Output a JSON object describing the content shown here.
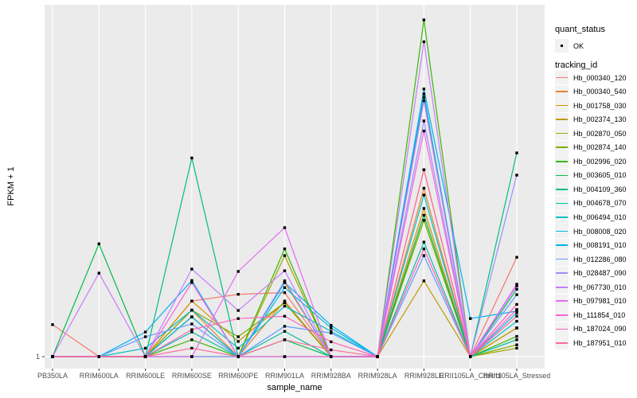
{
  "axes": {
    "x_title": "sample_name",
    "y_title": "FPKM + 1",
    "y_tick_label": "1"
  },
  "legend": {
    "quant_title": "quant_status",
    "quant_items": [
      {
        "label": "OK",
        "marker": "black-point"
      }
    ],
    "tracking_title": "tracking_id",
    "position": "right"
  },
  "colors": {
    "panel_bg": "#EBEBEB",
    "grid": "#FFFFFF",
    "tick_mark": "#333333",
    "tick_text": "#4D4D4D",
    "point": "#000000",
    "legend_key_bg": "#F2F2F2"
  },
  "chart_data": {
    "type": "line",
    "title": "",
    "xlabel": "sample_name",
    "ylabel": "FPKM + 1",
    "y_scale_note": "log-like axis; only break shown is '1' at the baseline; series values below are relative heights 0-100 estimated from pixels (100 = tallest peak)",
    "ylim": [
      0,
      100
    ],
    "grid": "vertical major gridlines per category + baseline line at y=1",
    "legend_position": "right",
    "point_marker": "small black square (quant_status OK)",
    "categories": [
      "PB350LA",
      "RRIM600LA",
      "RRIM600LE",
      "RRIM600SE",
      "RRIM600PE",
      "RRIM901LA",
      "RRIM928BA",
      "RRIM928LA",
      "RRIM928LE",
      "RRII105LA_Control",
      "RRII105LA_Stressed"
    ],
    "series": [
      {
        "name": "Hb_000340_120",
        "color": "#F8766D",
        "values": [
          9.5,
          0,
          0,
          16.5,
          18.5,
          19,
          0,
          0,
          55.5,
          0,
          29.5
        ]
      },
      {
        "name": "Hb_000340_540",
        "color": "#EA8331",
        "values": [
          0,
          0,
          0,
          13.8,
          0,
          16.5,
          0,
          0,
          50,
          0,
          8.5
        ]
      },
      {
        "name": "Hb_001758_030",
        "color": "#D89000",
        "values": [
          0,
          0,
          0,
          16.5,
          4.5,
          16,
          0,
          0,
          44,
          0,
          8.5
        ]
      },
      {
        "name": "Hb_002374_130",
        "color": "#C09B00",
        "values": [
          0,
          0,
          0,
          11.8,
          0,
          22,
          0,
          0,
          22.5,
          0,
          8.5
        ]
      },
      {
        "name": "Hb_002870_050",
        "color": "#A3A500",
        "values": [
          0,
          0,
          0,
          11.8,
          0,
          30,
          0,
          0,
          40.5,
          0,
          2.5
        ]
      },
      {
        "name": "Hb_002874_140",
        "color": "#7CAE00",
        "values": [
          0,
          0,
          0,
          13.8,
          5.9,
          16,
          0,
          0,
          40.5,
          0,
          3.5
        ]
      },
      {
        "name": "Hb_002996_020",
        "color": "#39B600",
        "values": [
          0,
          0,
          0,
          5,
          0,
          32,
          0,
          0,
          100,
          0,
          6
        ]
      },
      {
        "name": "Hb_003605_010",
        "color": "#00BB4E",
        "values": [
          0,
          33.5,
          0,
          0,
          0,
          5,
          0,
          0,
          42,
          0,
          20
        ]
      },
      {
        "name": "Hb_004109_360",
        "color": "#00BF7D",
        "values": [
          0,
          0,
          0,
          59,
          0,
          0,
          0,
          0,
          77,
          0,
          60.5
        ]
      },
      {
        "name": "Hb_004678_070",
        "color": "#00C1A3",
        "values": [
          0,
          0,
          0,
          7.3,
          0,
          7.5,
          0,
          0,
          34,
          0,
          5
        ]
      },
      {
        "name": "Hb_006494_010",
        "color": "#00BFC4",
        "values": [
          0,
          0,
          2.5,
          13.8,
          2.5,
          15,
          7.5,
          0,
          48,
          0,
          10.5
        ]
      },
      {
        "name": "Hb_008008_020",
        "color": "#00BAE0",
        "values": [
          0,
          0,
          0,
          11.8,
          0,
          20.5,
          8.5,
          0,
          78,
          0,
          13
        ]
      },
      {
        "name": "Hb_008191_010",
        "color": "#00B0F6",
        "values": [
          0,
          0,
          7.3,
          22.6,
          0,
          22,
          9.3,
          0,
          79.5,
          11.3,
          13.5
        ]
      },
      {
        "name": "Hb_012286_080",
        "color": "#619CFF",
        "values": [
          0,
          0,
          5.9,
          9.7,
          0,
          9,
          7,
          0,
          30,
          0,
          18.4
        ]
      },
      {
        "name": "Hb_028487_090",
        "color": "#9590FF",
        "values": [
          0,
          0,
          0,
          0,
          0,
          22.5,
          0,
          0,
          70,
          0,
          53.9
        ]
      },
      {
        "name": "Hb_067730_010",
        "color": "#C77CFF",
        "values": [
          0,
          24.8,
          0,
          26,
          13.7,
          25.5,
          0,
          0,
          93.5,
          0,
          21
        ]
      },
      {
        "name": "Hb_097981_010",
        "color": "#E76BF3",
        "values": [
          0,
          0,
          0,
          0,
          25.3,
          38.3,
          0,
          0,
          76,
          0,
          21.5
        ]
      },
      {
        "name": "Hb_111854_010",
        "color": "#FA62DB",
        "values": [
          0,
          0,
          0,
          22,
          0,
          0,
          0,
          0,
          67,
          0,
          14
        ]
      },
      {
        "name": "Hb_187024_090",
        "color": "#FF62BC",
        "values": [
          0,
          0,
          0,
          8,
          11.3,
          12,
          4.4,
          0,
          32,
          0,
          15.5
        ]
      },
      {
        "name": "Hb_187951_010",
        "color": "#FF6A98",
        "values": [
          0,
          0,
          0,
          2.5,
          0,
          5,
          2,
          0,
          55.5,
          0,
          12
        ]
      }
    ]
  }
}
